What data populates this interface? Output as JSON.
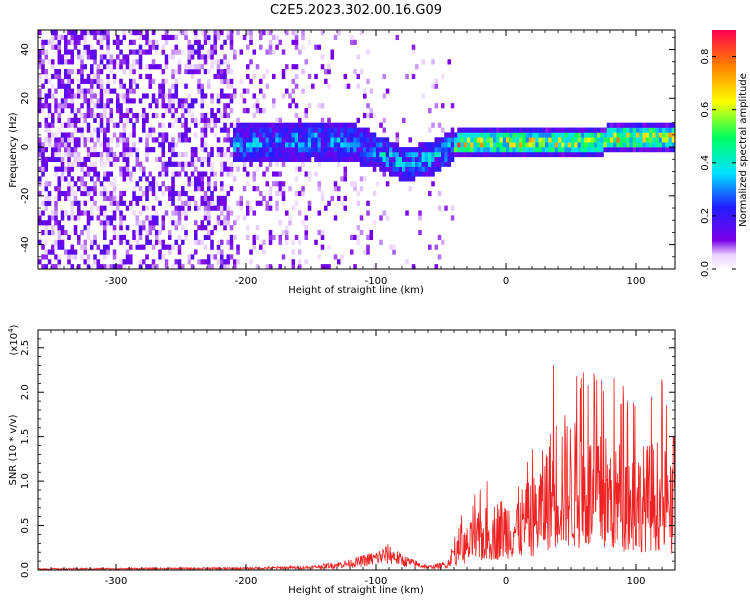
{
  "title": "C2E5.2023.302.00.16.G09",
  "chart_data": [
    {
      "type": "heatmap",
      "xlabel": "Height of straight line (km)",
      "ylabel": "Frequency (Hz)",
      "xlim": [
        -360,
        130
      ],
      "ylim": [
        -50,
        48
      ],
      "x_ticks": [
        -300,
        -200,
        -100,
        0,
        100
      ],
      "y_ticks": [
        -40,
        -20,
        0,
        20,
        40
      ],
      "colorbar": {
        "label": "Normalized spectral amplitude",
        "range": [
          0.0,
          0.9
        ],
        "ticks": [
          0.0,
          0.2,
          0.4,
          0.6,
          0.8
        ],
        "colors": [
          "#ffffff",
          "#e8d0ff",
          "#7a00e8",
          "#2020ff",
          "#00e0ff",
          "#00ff60",
          "#ffff00",
          "#ff8000",
          "#ff0050"
        ]
      },
      "ridge": {
        "description_points": [
          [
            -210,
            0
          ],
          [
            -150,
            2
          ],
          [
            -120,
            1
          ],
          [
            -100,
            -3
          ],
          [
            -80,
            -8
          ],
          [
            -60,
            -6
          ],
          [
            -40,
            0
          ],
          [
            0,
            1
          ],
          [
            50,
            1
          ],
          [
            100,
            3
          ],
          [
            130,
            4
          ]
        ]
      }
    },
    {
      "type": "line",
      "xlabel": "Height of straight line (km)",
      "ylabel": "SNR (10 * v/v)",
      "y_multiplier": "(x10",
      "y_exponent": "4",
      "y_multiplier_close": ")",
      "xlim": [
        -360,
        130
      ],
      "ylim": [
        0,
        2.7
      ],
      "x_ticks": [
        -300,
        -200,
        -100,
        0,
        100
      ],
      "y_ticks": [
        0.0,
        0.5,
        1.0,
        1.5,
        2.0,
        2.5
      ],
      "line_color": "#ee2222",
      "envelope": [
        [
          -360,
          0.02
        ],
        [
          -200,
          0.03
        ],
        [
          -150,
          0.05
        ],
        [
          -120,
          0.12
        ],
        [
          -100,
          0.22
        ],
        [
          -90,
          0.3
        ],
        [
          -80,
          0.18
        ],
        [
          -60,
          0.05
        ],
        [
          -45,
          0.1
        ],
        [
          -35,
          0.6
        ],
        [
          -20,
          0.95
        ],
        [
          0,
          1.25
        ],
        [
          20,
          1.45
        ],
        [
          40,
          2.65
        ],
        [
          60,
          2.3
        ],
        [
          80,
          2.2
        ],
        [
          100,
          2.0
        ],
        [
          120,
          2.15
        ],
        [
          130,
          1.5
        ]
      ]
    }
  ],
  "tick_labels_top_x": [
    "-300",
    "-200",
    "-100",
    "0",
    "100"
  ],
  "tick_labels_top_y": [
    "-40",
    "-20",
    "0",
    "20",
    "40"
  ],
  "tick_labels_cb": [
    "0.0",
    "0.2",
    "0.4",
    "0.6",
    "0.8"
  ],
  "tick_labels_bot_x": [
    "-300",
    "-200",
    "-100",
    "0",
    "100"
  ],
  "tick_labels_bot_y": [
    "0.0",
    "0.5",
    "1.0",
    "1.5",
    "2.0",
    "2.5"
  ]
}
